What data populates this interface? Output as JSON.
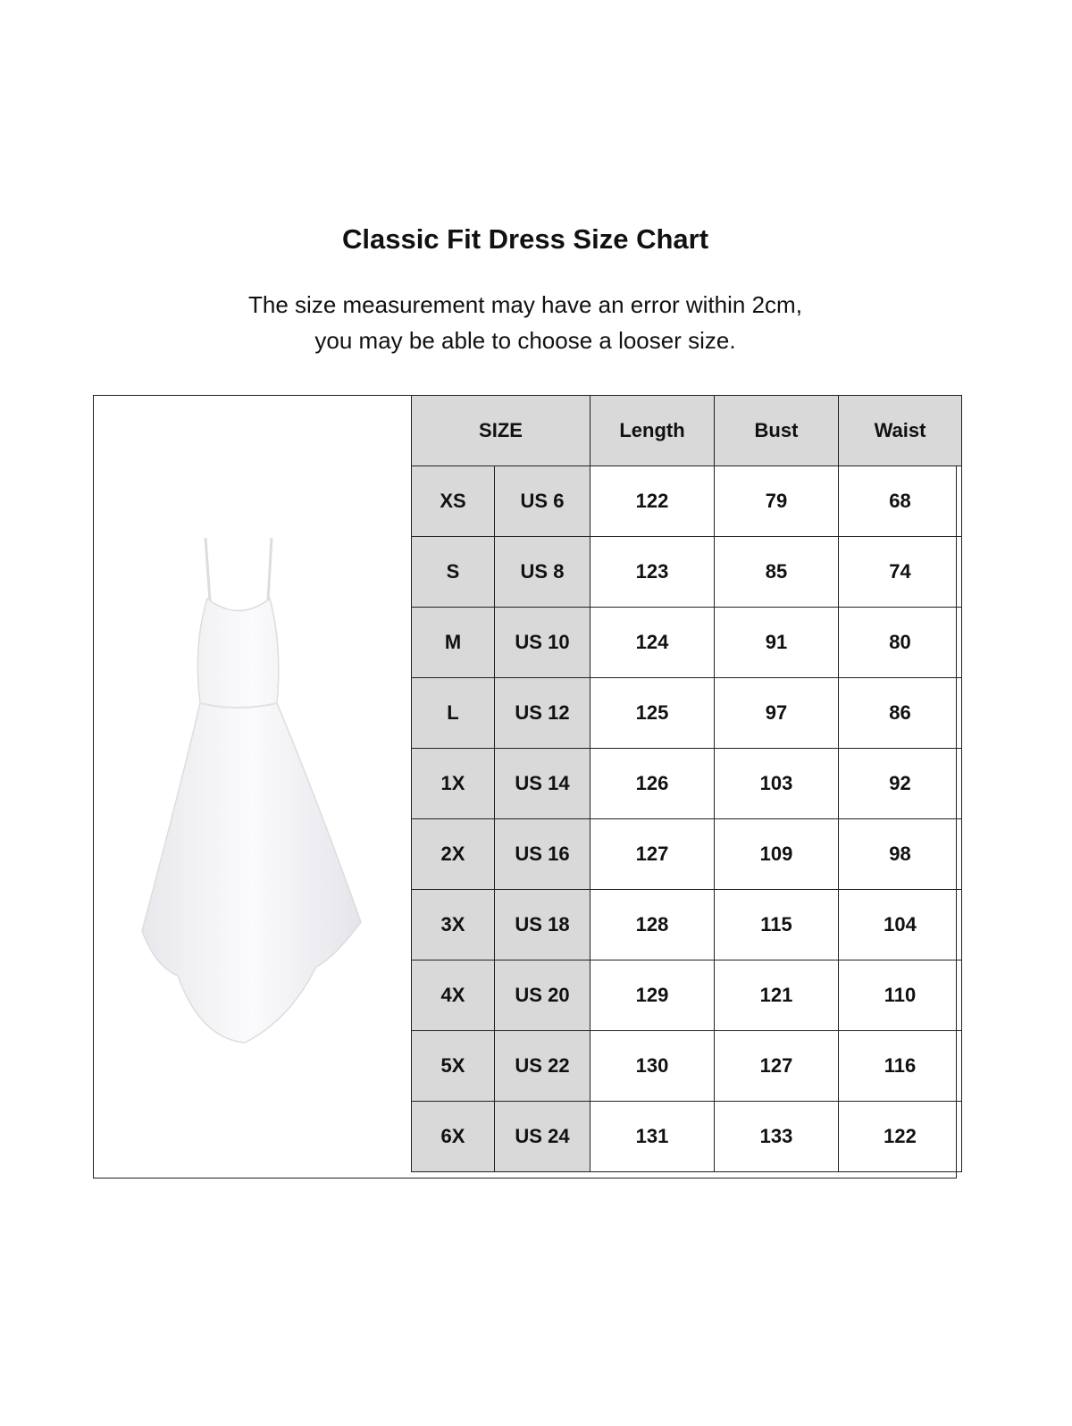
{
  "title": "Classic Fit Dress Size Chart",
  "note_line1": "The size measurement may have an error within 2cm,",
  "note_line2": "you may be able to choose a looser size.",
  "colors": {
    "header_fill": "#d9d9d9",
    "border": "#222222"
  },
  "table": {
    "headers": [
      "SIZE",
      "Length",
      "Bust",
      "Waist"
    ],
    "rows": [
      [
        "XS",
        "US 6",
        "122",
        "79",
        "68"
      ],
      [
        "S",
        "US 8",
        "123",
        "85",
        "74"
      ],
      [
        "M",
        "US 10",
        "124",
        "91",
        "80"
      ],
      [
        "L",
        "US 12",
        "125",
        "97",
        "86"
      ],
      [
        "1X",
        "US 14",
        "126",
        "103",
        "92"
      ],
      [
        "2X",
        "US 16",
        "127",
        "109",
        "98"
      ],
      [
        "3X",
        "US 18",
        "128",
        "115",
        "104"
      ],
      [
        "4X",
        "US 20",
        "129",
        "121",
        "110"
      ],
      [
        "5X",
        "US 22",
        "130",
        "127",
        "116"
      ],
      [
        "6X",
        "US 24",
        "131",
        "133",
        "122"
      ]
    ]
  }
}
